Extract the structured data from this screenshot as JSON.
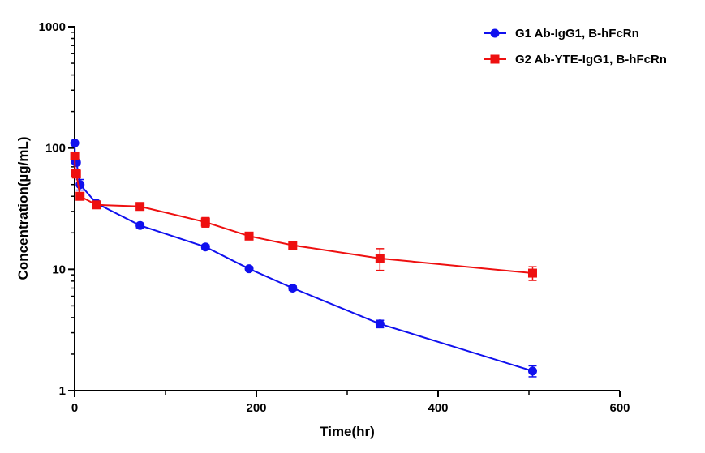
{
  "chart_data": {
    "type": "line",
    "title": "",
    "xlabel": "Time(hr)",
    "ylabel": "Concentration(µg/mL)",
    "x_scale": "linear",
    "y_scale": "log",
    "xlim": [
      0,
      600
    ],
    "ylim": [
      1,
      1000
    ],
    "x_ticks": [
      0,
      200,
      400,
      600
    ],
    "x_tick_labels": [
      "0",
      "200",
      "400",
      "600"
    ],
    "y_ticks": [
      1,
      10,
      100,
      1000
    ],
    "y_tick_labels": [
      "1",
      "10",
      "100",
      "1000"
    ],
    "grid": false,
    "legend_position": "top-right",
    "series": [
      {
        "name": "G1 Ab-IgG1, B-hFcRn",
        "color": "#1010ee",
        "marker": "circle",
        "x": [
          0.083,
          0.5,
          2,
          6,
          24,
          72,
          144,
          192,
          240,
          336,
          504
        ],
        "y": [
          110,
          78,
          76,
          50,
          35,
          23,
          15.3,
          10.1,
          7.0,
          3.55,
          1.45
        ],
        "err": [
          0,
          3,
          3,
          5,
          1.5,
          1,
          0.6,
          0.4,
          0.3,
          0.25,
          0.15
        ]
      },
      {
        "name": "G2 Ab-YTE-IgG1, B-hFcRn",
        "color": "#ee1010",
        "marker": "square",
        "x": [
          0.083,
          0.5,
          2,
          6,
          24,
          72,
          144,
          192,
          240,
          336,
          504
        ],
        "y": [
          86,
          62,
          61,
          40,
          34,
          33,
          24.5,
          18.8,
          15.8,
          12.3,
          9.3
        ],
        "err": [
          3,
          3,
          3,
          2,
          1.5,
          1,
          2.2,
          0.8,
          0.6,
          2.5,
          1.2
        ]
      }
    ]
  }
}
